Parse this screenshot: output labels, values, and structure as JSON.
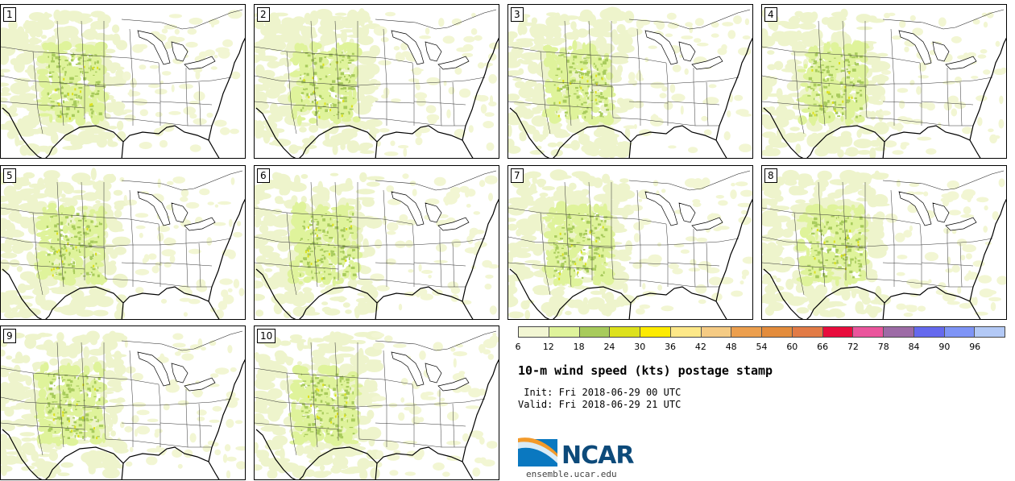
{
  "members": [
    "1",
    "2",
    "3",
    "4",
    "5",
    "6",
    "7",
    "8",
    "9",
    "10"
  ],
  "colorbar": {
    "colors": [
      "#f2f6d3",
      "#dff39b",
      "#a8cb5c",
      "#dde11d",
      "#fdeb02",
      "#fde888",
      "#f5cb84",
      "#ec9f4e",
      "#e38c3c",
      "#e27b46",
      "#e80c3c",
      "#ea559c",
      "#9d6ba6",
      "#6569ee",
      "#7e94f6",
      "#b3c9f6"
    ],
    "ticks": [
      "6",
      "12",
      "18",
      "24",
      "30",
      "36",
      "42",
      "48",
      "54",
      "60",
      "66",
      "72",
      "78",
      "84",
      "90",
      "96"
    ]
  },
  "title": "10-m wind speed (kts) postage stamp",
  "init_line": " Init: Fri 2018-06-29 00 UTC",
  "valid_line": "Valid: Fri 2018-06-29 21 UTC",
  "logo": {
    "text": "NCAR",
    "site": "ensemble.ucar.edu"
  }
}
